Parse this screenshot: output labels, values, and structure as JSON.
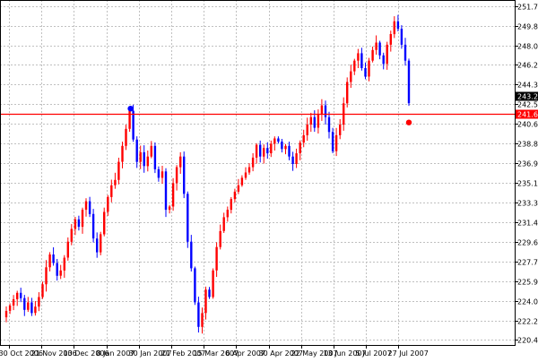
{
  "colors": {
    "background": "#ffffff",
    "grid": "#c0c0c0",
    "bull": "#ff0000",
    "bear": "#0000ff",
    "level_line": "#ff0000",
    "high_marker": "#0000ff",
    "low_marker": "#ff0000",
    "current_price_box": "#000000",
    "level_box": "#ff0000"
  },
  "chart_data": {
    "type": "candlestick",
    "title": "",
    "xlabel": "",
    "ylabel": "",
    "grid": true,
    "ylim": [
      219.9,
      252.3
    ],
    "y_ticks": [
      "251.70",
      "249.85",
      "248.00",
      "246.20",
      "244.35",
      "242.50",
      "240.65",
      "238.80",
      "236.95",
      "235.10",
      "233.30",
      "231.45",
      "229.60",
      "227.75",
      "225.90",
      "224.05",
      "222.20",
      "220.40"
    ],
    "x_ticks": [
      "30 Oct 2006",
      "21 Nov 2006",
      "13 Dec 2006",
      "8 Jan 2007",
      "30 Jan 2007",
      "21 Feb 2007",
      "15 Mar 2007",
      "6 Apr 2007",
      "30 Apr 2007",
      "22 May 2007",
      "13 Jun 2007",
      "5 Jul 2007",
      "27 Jul 2007"
    ],
    "horizontal_level": {
      "value": 241.61,
      "label": "241.61"
    },
    "current_price": {
      "value": 243.27,
      "label": "243.27"
    },
    "high_marker": {
      "value": 242.1
    },
    "low_marker": {
      "value": 240.8
    },
    "close_path": [
      222.5,
      223.1,
      223.6,
      224.2,
      224.8,
      224.3,
      223.2,
      223.9,
      222.9,
      223.5,
      224.4,
      225.6,
      227.2,
      228.4,
      227.6,
      226.4,
      226.9,
      228.1,
      229.6,
      230.8,
      231.7,
      231.0,
      232.6,
      233.4,
      232.2,
      229.9,
      228.6,
      230.3,
      232.4,
      233.8,
      234.9,
      235.4,
      237.1,
      238.6,
      240.2,
      241.9,
      239.2,
      237.1,
      238.0,
      236.7,
      237.6,
      238.6,
      236.4,
      235.6,
      236.2,
      232.6,
      232.9,
      235.1,
      236.6,
      237.6,
      234.1,
      229.6,
      227.1,
      223.9,
      221.6,
      222.9,
      225.1,
      224.4,
      226.9,
      229.1,
      230.6,
      231.9,
      232.6,
      233.6,
      234.3,
      234.9,
      235.6,
      236.1,
      236.6,
      237.5,
      238.7,
      237.6,
      238.4,
      237.9,
      238.8,
      239.3,
      239.0,
      238.3,
      238.6,
      237.6,
      236.9,
      237.9,
      238.9,
      239.6,
      240.6,
      241.3,
      240.3,
      241.6,
      242.4,
      241.3,
      239.9,
      238.1,
      239.6,
      240.6,
      242.6,
      244.6,
      245.6,
      246.6,
      247.3,
      245.9,
      245.1,
      246.6,
      247.6,
      248.3,
      247.1,
      246.3,
      248.1,
      249.1,
      250.3,
      249.6,
      248.1,
      246.6,
      242.6
    ]
  }
}
